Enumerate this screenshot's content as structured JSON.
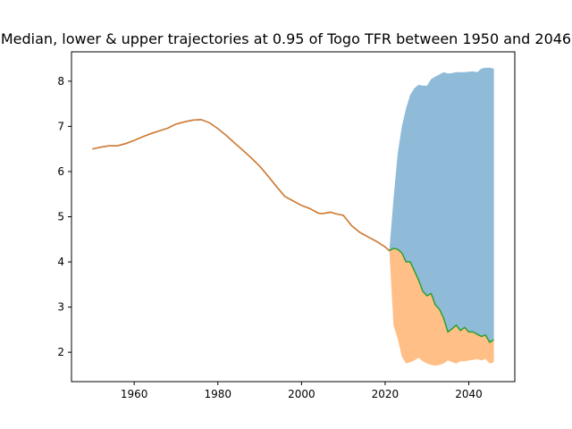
{
  "chart_data": {
    "type": "area",
    "title": "Median, lower & upper trajectories at 0.95 of Togo TFR between 1950 and 2046",
    "xlabel": "",
    "ylabel": "",
    "xlim": [
      1945,
      2051
    ],
    "ylim": [
      1.35,
      8.65
    ],
    "xticks": [
      1960,
      1980,
      2000,
      2020,
      2040
    ],
    "yticks": [
      2,
      3,
      4,
      5,
      6,
      7,
      8
    ],
    "grid": false,
    "legend": "none",
    "colors": {
      "upper_band": "#1f77b4",
      "lower_band": "#ff7f0e",
      "historical": "#ff7f0e",
      "median": "#2ca02c",
      "historical_overlay": "#e07b27"
    },
    "historical": {
      "x": [
        1950,
        1952,
        1954,
        1956,
        1958,
        1960,
        1962,
        1964,
        1966,
        1968,
        1970,
        1972,
        1974,
        1976,
        1978,
        1980,
        1982,
        1984,
        1986,
        1988,
        1990,
        1992,
        1994,
        1996,
        1998,
        2000,
        2002,
        2004,
        2005,
        2007,
        2008,
        2010,
        2012,
        2014,
        2016,
        2018,
        2020,
        2021
      ],
      "y": [
        6.5,
        6.54,
        6.57,
        6.57,
        6.62,
        6.69,
        6.77,
        6.84,
        6.9,
        6.96,
        7.05,
        7.1,
        7.14,
        7.15,
        7.08,
        6.95,
        6.8,
        6.63,
        6.47,
        6.3,
        6.12,
        5.9,
        5.67,
        5.45,
        5.35,
        5.25,
        5.18,
        5.08,
        5.07,
        5.1,
        5.07,
        5.03,
        4.8,
        4.65,
        4.55,
        4.45,
        4.33,
        4.25
      ]
    },
    "median": {
      "x": [
        2021,
        2022,
        2023,
        2024,
        2025,
        2026,
        2027,
        2028,
        2029,
        2030,
        2031,
        2032,
        2033,
        2034,
        2035,
        2036,
        2037,
        2038,
        2039,
        2040,
        2041,
        2042,
        2043,
        2044,
        2045,
        2046
      ],
      "y": [
        4.25,
        4.3,
        4.28,
        4.2,
        4.0,
        4.0,
        3.8,
        3.6,
        3.35,
        3.25,
        3.3,
        3.05,
        2.95,
        2.75,
        2.45,
        2.52,
        2.6,
        2.48,
        2.55,
        2.45,
        2.45,
        2.4,
        2.35,
        2.38,
        2.22,
        2.28
      ]
    },
    "upper": {
      "x": [
        2021,
        2022,
        2023,
        2024,
        2025,
        2026,
        2027,
        2028,
        2029,
        2030,
        2031,
        2032,
        2033,
        2034,
        2035,
        2036,
        2037,
        2038,
        2039,
        2040,
        2041,
        2042,
        2043,
        2044,
        2045,
        2046
      ],
      "y": [
        4.25,
        5.4,
        6.4,
        7.0,
        7.4,
        7.7,
        7.85,
        7.92,
        7.9,
        7.9,
        8.05,
        8.1,
        8.15,
        8.2,
        8.17,
        8.18,
        8.2,
        8.2,
        8.2,
        8.21,
        8.22,
        8.2,
        8.28,
        8.3,
        8.3,
        8.28
      ]
    },
    "lower": {
      "x": [
        2021,
        2022,
        2023,
        2024,
        2025,
        2026,
        2027,
        2028,
        2029,
        2030,
        2031,
        2032,
        2033,
        2034,
        2035,
        2036,
        2037,
        2038,
        2039,
        2040,
        2041,
        2042,
        2043,
        2044,
        2045,
        2046
      ],
      "y": [
        4.25,
        2.6,
        2.3,
        1.9,
        1.75,
        1.78,
        1.82,
        1.88,
        1.8,
        1.75,
        1.72,
        1.7,
        1.72,
        1.75,
        1.82,
        1.78,
        1.75,
        1.8,
        1.8,
        1.82,
        1.83,
        1.85,
        1.82,
        1.85,
        1.75,
        1.78
      ]
    }
  }
}
